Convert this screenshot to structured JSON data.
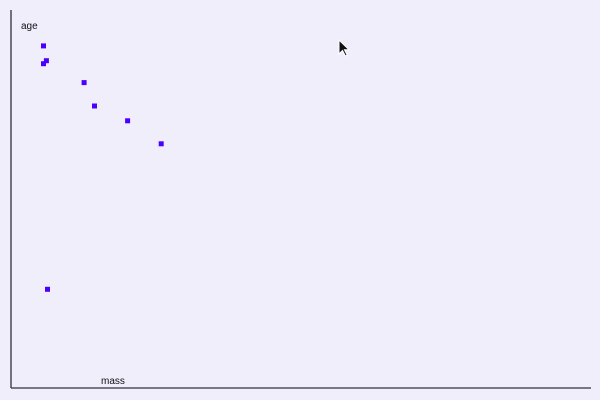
{
  "chart_data": {
    "type": "scatter",
    "xlabel": "mass",
    "ylabel": "age",
    "xlim": [
      0,
      100
    ],
    "ylim": [
      0,
      100
    ],
    "grid": false,
    "legend": "none",
    "colors": {
      "background": "#f0eefb",
      "axes": "#2f2f3a",
      "points": "#4b00ff"
    },
    "points": [
      {
        "x": 5.6,
        "y": 90.5
      },
      {
        "x": 6.1,
        "y": 86.6
      },
      {
        "x": 5.6,
        "y": 85.8
      },
      {
        "x": 12.6,
        "y": 80.8
      },
      {
        "x": 14.4,
        "y": 74.6
      },
      {
        "x": 20.1,
        "y": 70.7
      },
      {
        "x": 25.9,
        "y": 64.6
      },
      {
        "x": 6.3,
        "y": 26.1
      }
    ]
  },
  "cursor": {
    "icon": "arrow-pointer-icon"
  }
}
